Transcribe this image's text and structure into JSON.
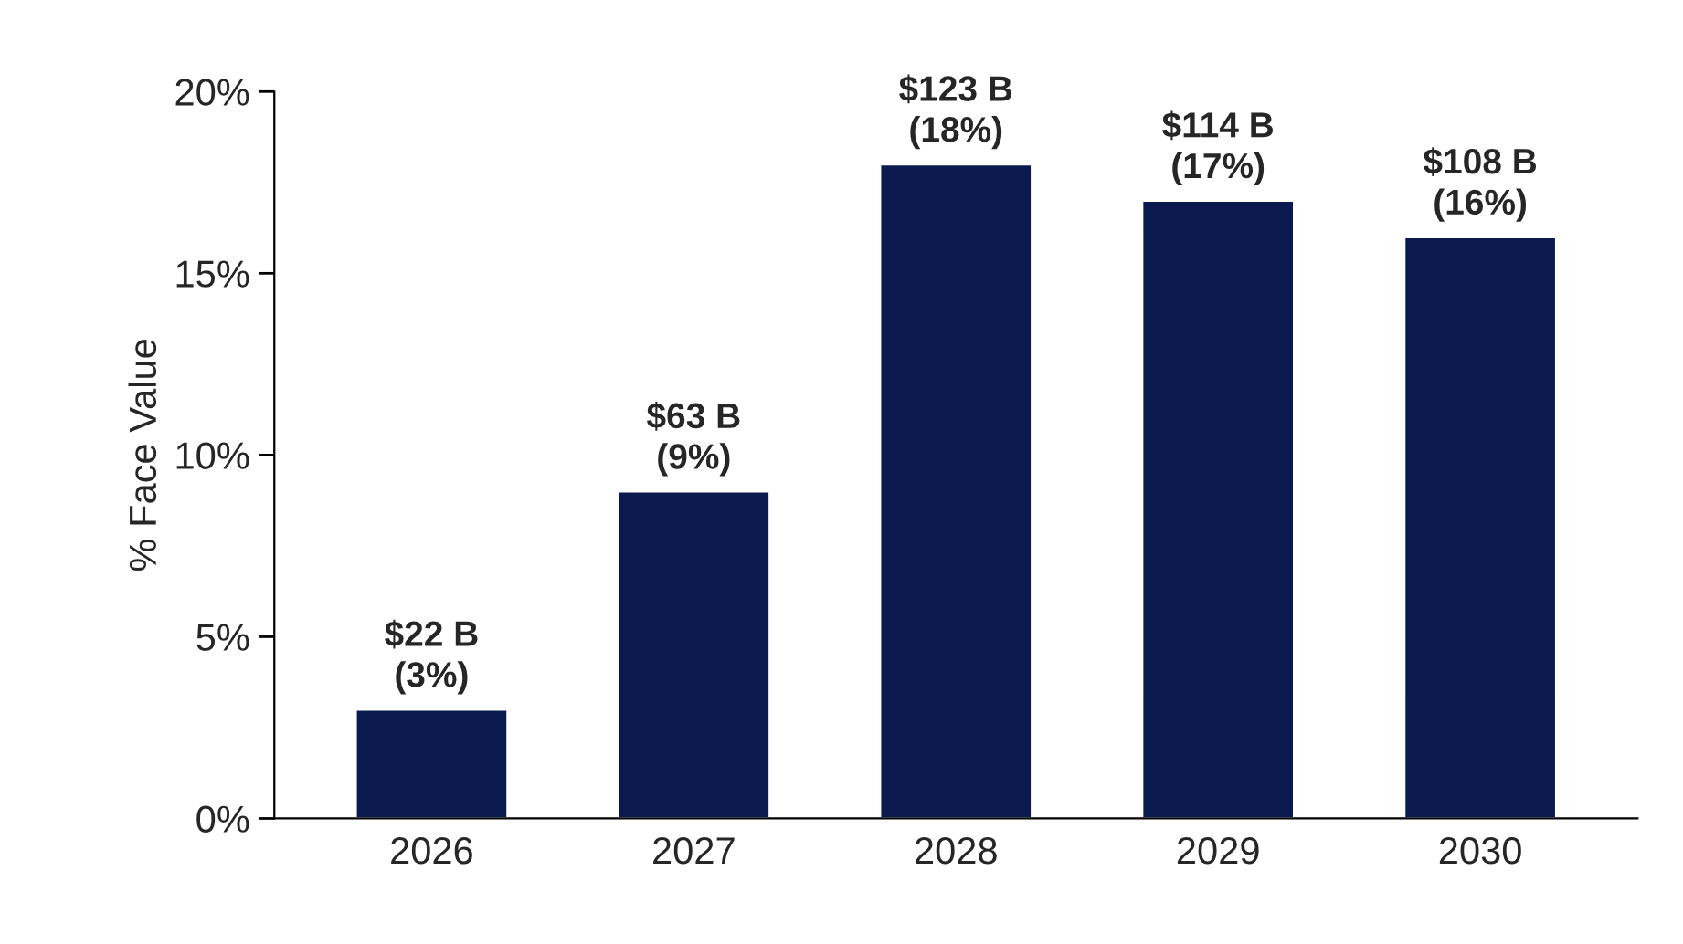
{
  "chart_data": {
    "type": "bar",
    "ylabel": "% Face Value",
    "categories": [
      "2026",
      "2027",
      "2028",
      "2029",
      "2030"
    ],
    "values": [
      3,
      9,
      18,
      17,
      16
    ],
    "value_labels": [
      "$22 B\n(3%)",
      "$63 B\n(9%)",
      "$123 B\n(18%)",
      "$114 B\n(17%)",
      "$108 B\n(16%)"
    ],
    "color": "#0b1a4e",
    "ylim": [
      0,
      20
    ],
    "yticks": [
      {
        "value": 0,
        "label": "0%"
      },
      {
        "value": 5,
        "label": "5%"
      },
      {
        "value": 10,
        "label": "10%"
      },
      {
        "value": 15,
        "label": "15%"
      },
      {
        "value": 20,
        "label": "20%"
      }
    ],
    "grid": false,
    "legend": false
  }
}
